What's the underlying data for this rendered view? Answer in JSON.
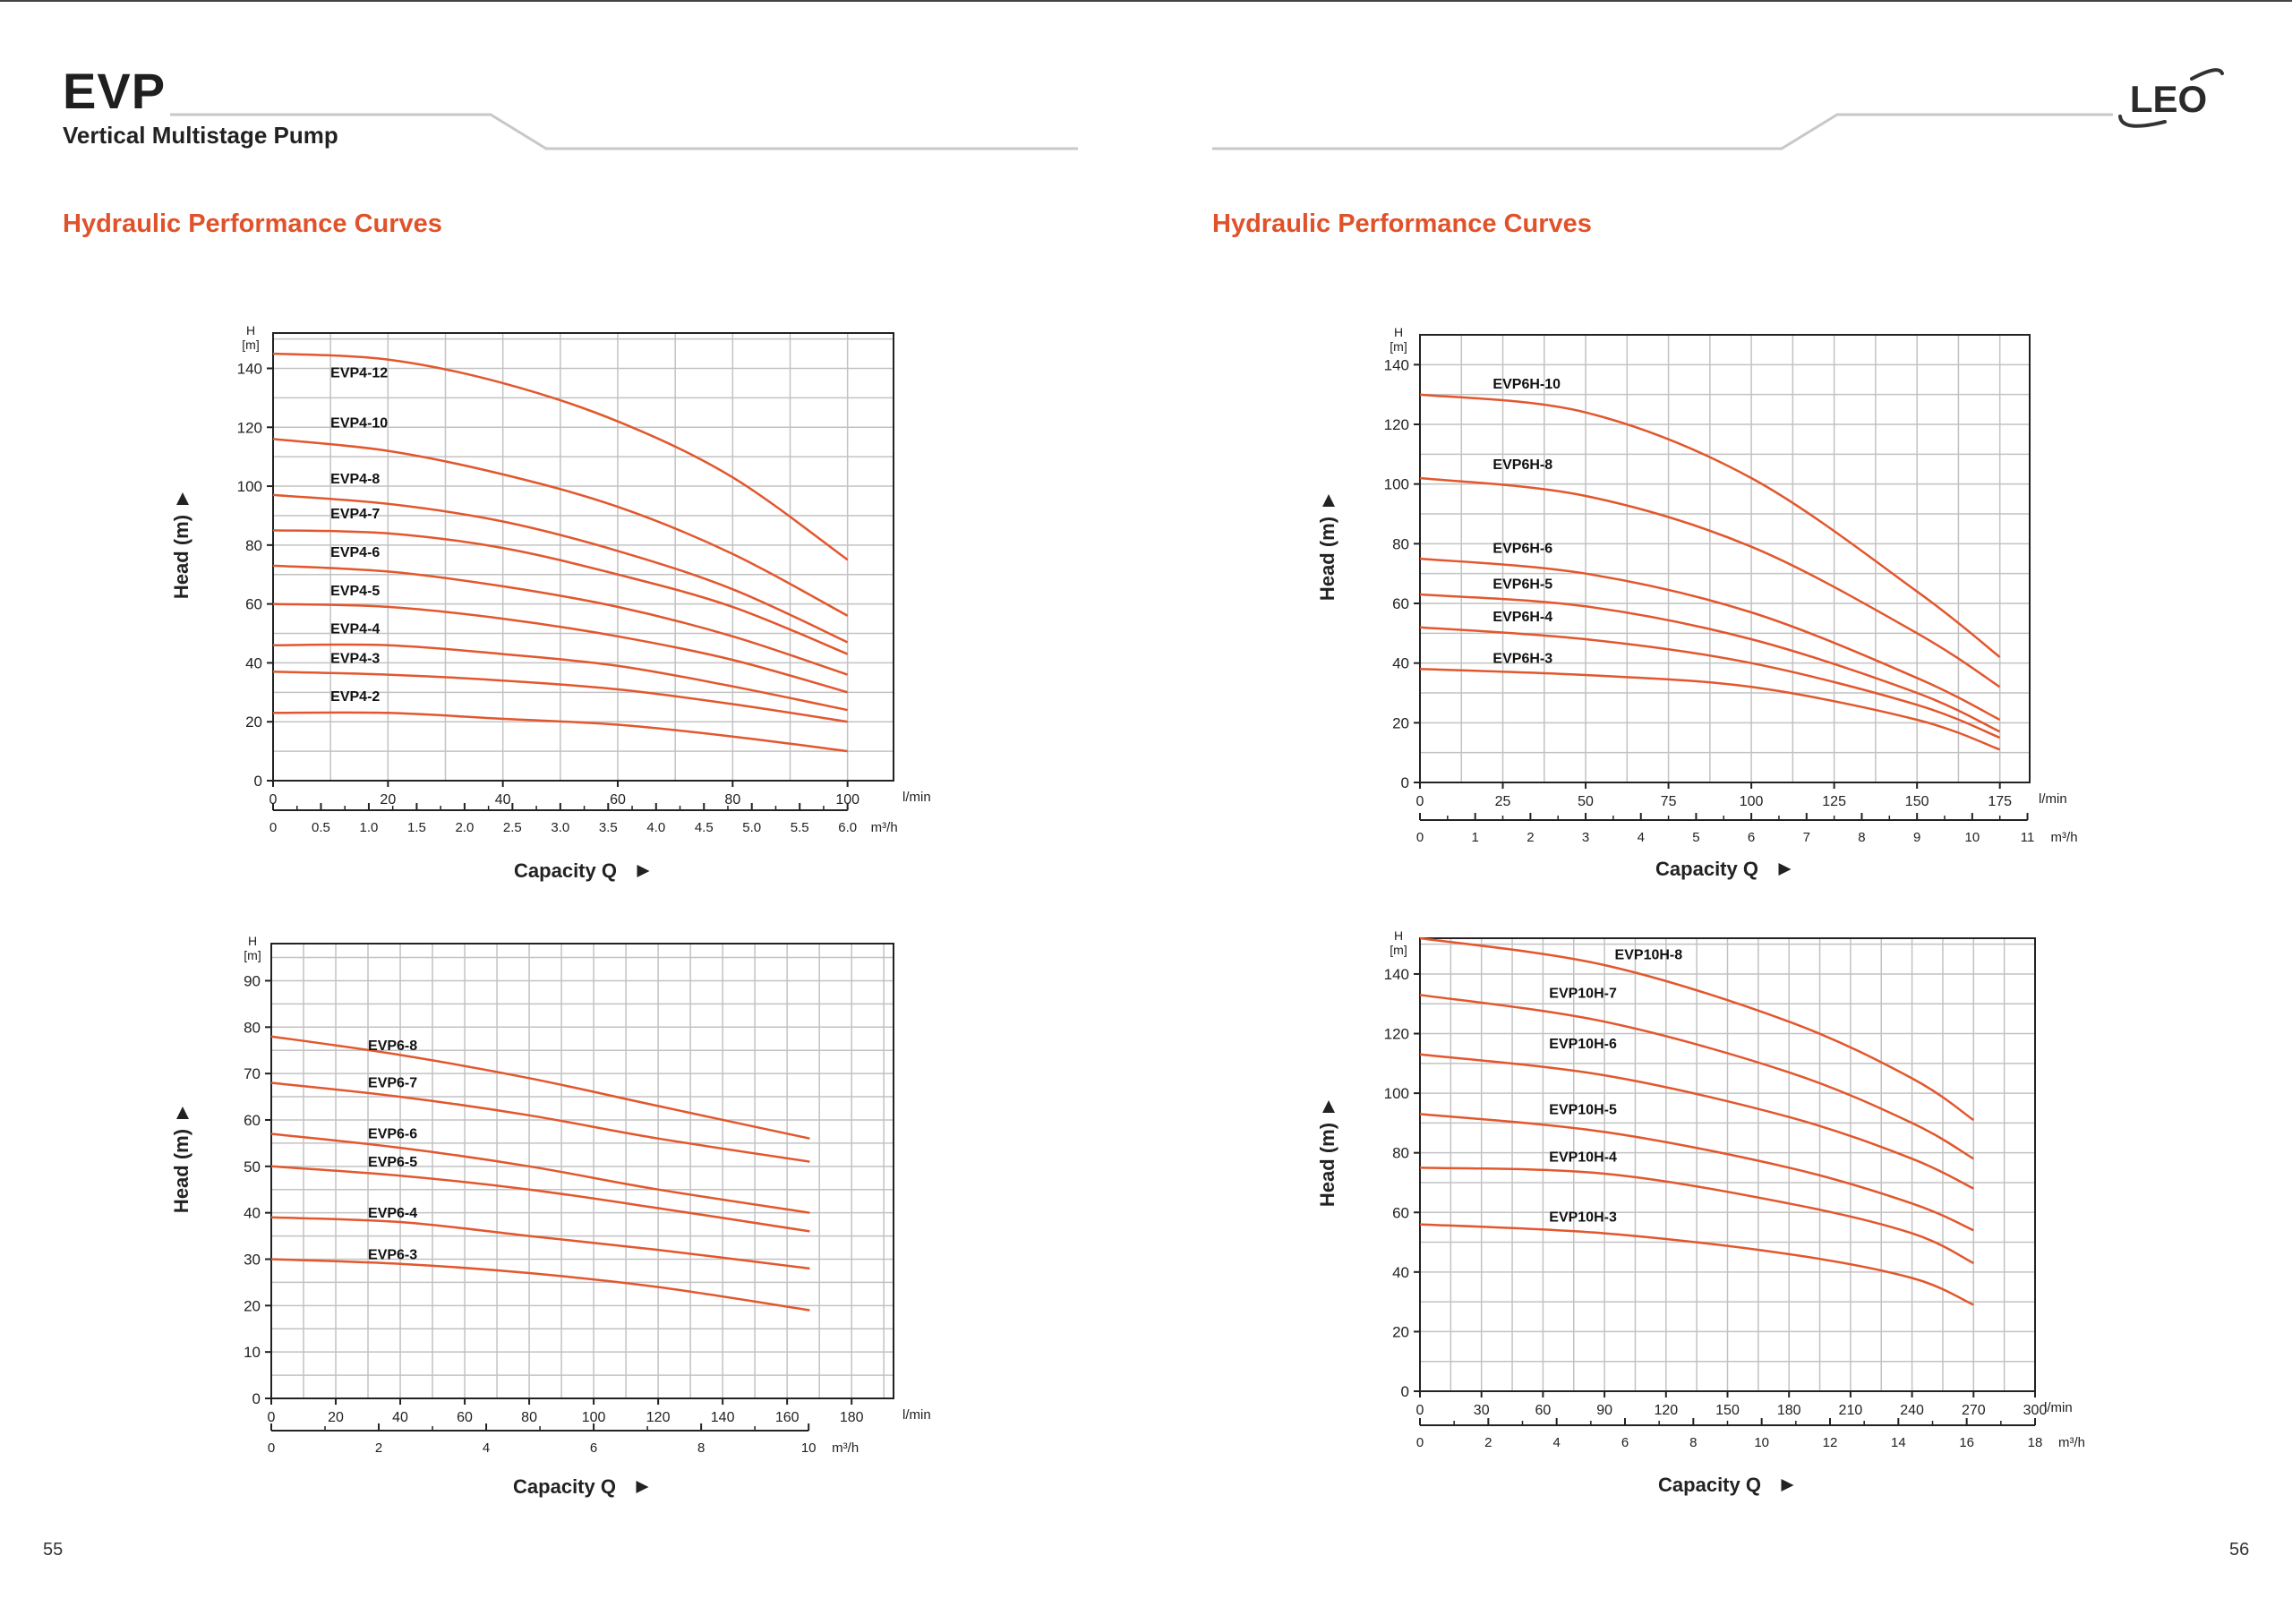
{
  "header": {
    "title": "EVP",
    "subtitle": "Vertical Multistage Pump",
    "logo_text": "LEO"
  },
  "left_page": {
    "section_title": "Hydraulic Performance Curves",
    "page_number": "55"
  },
  "right_page": {
    "section_title": "Hydraulic Performance Curves",
    "page_number": "56"
  },
  "colors": {
    "curve": "#e2572d",
    "accent": "#e0522a",
    "grid": "#c2c2c2",
    "frame": "#222222"
  },
  "chart_data": [
    {
      "id": "evp4",
      "type": "line",
      "title": "",
      "xlabel": "Capacity Q",
      "ylabel": "Head (m)",
      "y_unit_top": "H",
      "y_unit_bottom": "[m]",
      "x_unit": "l/min",
      "x2_unit": "m³/h",
      "xlim": [
        0,
        108
      ],
      "ylim": [
        0,
        152
      ],
      "xticks": [
        0,
        20,
        40,
        60,
        80,
        100
      ],
      "yticks": [
        0,
        20,
        40,
        60,
        80,
        100,
        120,
        140
      ],
      "x2ticks": [
        0,
        0.5,
        1.0,
        1.5,
        2.0,
        2.5,
        3.0,
        3.5,
        4.0,
        4.5,
        5.0,
        5.5,
        6.0
      ],
      "x2ticklabels": [
        "0",
        "0.5",
        "1.0",
        "1.5",
        "2.0",
        "2.5",
        "3.0",
        "3.5",
        "4.0",
        "4.5",
        "5.0",
        "5.5",
        "6.0"
      ],
      "x2_factor": 0.06,
      "series": [
        {
          "name": "EVP4-12",
          "label_at": [
            10,
            137
          ],
          "x": [
            0,
            20,
            40,
            60,
            80,
            100
          ],
          "values": [
            145,
            143,
            135,
            122,
            103,
            75
          ]
        },
        {
          "name": "EVP4-10",
          "label_at": [
            10,
            120
          ],
          "x": [
            0,
            20,
            40,
            60,
            80,
            100
          ],
          "values": [
            116,
            112,
            104,
            93,
            77,
            56
          ]
        },
        {
          "name": "EVP4-8",
          "label_at": [
            10,
            101
          ],
          "x": [
            0,
            20,
            40,
            60,
            80,
            100
          ],
          "values": [
            97,
            94,
            88,
            78,
            65,
            47
          ]
        },
        {
          "name": "EVP4-7",
          "label_at": [
            10,
            89
          ],
          "x": [
            0,
            20,
            40,
            60,
            80,
            100
          ],
          "values": [
            85,
            84,
            79,
            70,
            59,
            43
          ]
        },
        {
          "name": "EVP4-6",
          "label_at": [
            10,
            76
          ],
          "x": [
            0,
            20,
            40,
            60,
            80,
            100
          ],
          "values": [
            73,
            71,
            66,
            59,
            49,
            36
          ]
        },
        {
          "name": "EVP4-5",
          "label_at": [
            10,
            63
          ],
          "x": [
            0,
            20,
            40,
            60,
            80,
            100
          ],
          "values": [
            60,
            59,
            55,
            49,
            41,
            30
          ]
        },
        {
          "name": "EVP4-4",
          "label_at": [
            10,
            50
          ],
          "x": [
            0,
            20,
            40,
            60,
            80,
            100
          ],
          "values": [
            46,
            46,
            43,
            39,
            32,
            24
          ]
        },
        {
          "name": "EVP4-3",
          "label_at": [
            10,
            40
          ],
          "x": [
            0,
            20,
            40,
            60,
            80,
            100
          ],
          "values": [
            37,
            36,
            34,
            31,
            26,
            20
          ]
        },
        {
          "name": "EVP4-2",
          "label_at": [
            10,
            27
          ],
          "x": [
            0,
            20,
            40,
            60,
            80,
            100
          ],
          "values": [
            23,
            23,
            21,
            19,
            15,
            10
          ]
        }
      ]
    },
    {
      "id": "evp6",
      "type": "line",
      "title": "",
      "xlabel": "Capacity Q",
      "ylabel": "Head (m)",
      "y_unit_top": "H",
      "y_unit_bottom": "[m]",
      "x_unit": "l/min",
      "x2_unit": "m³/h",
      "xlim": [
        0,
        193
      ],
      "ylim": [
        0,
        98
      ],
      "xticks": [
        0,
        20,
        40,
        60,
        80,
        100,
        120,
        140,
        160,
        180
      ],
      "yticks": [
        0,
        10,
        20,
        30,
        40,
        50,
        60,
        70,
        80,
        90
      ],
      "x2ticks": [
        0,
        2,
        4,
        6,
        8,
        10
      ],
      "x2ticklabels": [
        "0",
        "2",
        "4",
        "6",
        "8",
        "10"
      ],
      "x2_factor": 0.06,
      "series": [
        {
          "name": "EVP6-8",
          "label_at": [
            30,
            75
          ],
          "x": [
            0,
            40,
            80,
            120,
            167
          ],
          "values": [
            78,
            74,
            69,
            63,
            56
          ]
        },
        {
          "name": "EVP6-7",
          "label_at": [
            30,
            67
          ],
          "x": [
            0,
            40,
            80,
            120,
            167
          ],
          "values": [
            68,
            65,
            61,
            56,
            51
          ]
        },
        {
          "name": "EVP6-6",
          "label_at": [
            30,
            56
          ],
          "x": [
            0,
            40,
            80,
            120,
            167
          ],
          "values": [
            57,
            54,
            50,
            45,
            40
          ]
        },
        {
          "name": "EVP6-5",
          "label_at": [
            30,
            50
          ],
          "x": [
            0,
            40,
            80,
            120,
            167
          ],
          "values": [
            50,
            48,
            45,
            41,
            36
          ]
        },
        {
          "name": "EVP6-4",
          "label_at": [
            30,
            39
          ],
          "x": [
            0,
            40,
            80,
            120,
            167
          ],
          "values": [
            39,
            38,
            35,
            32,
            28
          ]
        },
        {
          "name": "EVP6-3",
          "label_at": [
            30,
            30
          ],
          "x": [
            0,
            40,
            80,
            120,
            167
          ],
          "values": [
            30,
            29,
            27,
            24,
            19
          ]
        }
      ]
    },
    {
      "id": "evp6h",
      "type": "line",
      "title": "",
      "xlabel": "Capacity Q",
      "ylabel": "Head (m)",
      "y_unit_top": "H",
      "y_unit_bottom": "[m]",
      "x_unit": "l/min",
      "x2_unit": "m³/h",
      "xlim": [
        0,
        184
      ],
      "ylim": [
        0,
        150
      ],
      "xticks": [
        0,
        25,
        50,
        75,
        100,
        125,
        150,
        175
      ],
      "yticks": [
        0,
        20,
        40,
        60,
        80,
        100,
        120,
        140
      ],
      "x2ticks": [
        0,
        1,
        2,
        3,
        4,
        5,
        6,
        7,
        8,
        9,
        10,
        11
      ],
      "x2ticklabels": [
        "0",
        "1",
        "2",
        "3",
        "4",
        "5",
        "6",
        "7",
        "8",
        "9",
        "10",
        "11"
      ],
      "x2_factor": 0.06,
      "series": [
        {
          "name": "EVP6H-10",
          "label_at": [
            22,
            132
          ],
          "x": [
            0,
            50,
            100,
            150,
            175
          ],
          "values": [
            130,
            124,
            102,
            64,
            42
          ]
        },
        {
          "name": "EVP6H-8",
          "label_at": [
            22,
            105
          ],
          "x": [
            0,
            50,
            100,
            150,
            175
          ],
          "values": [
            102,
            96,
            79,
            50,
            32
          ]
        },
        {
          "name": "EVP6H-6",
          "label_at": [
            22,
            77
          ],
          "x": [
            0,
            50,
            100,
            150,
            175
          ],
          "values": [
            75,
            70,
            57,
            35,
            21
          ]
        },
        {
          "name": "EVP6H-5",
          "label_at": [
            22,
            65
          ],
          "x": [
            0,
            50,
            100,
            150,
            175
          ],
          "values": [
            63,
            59,
            48,
            30,
            17
          ]
        },
        {
          "name": "EVP6H-4",
          "label_at": [
            22,
            54
          ],
          "x": [
            0,
            50,
            100,
            150,
            175
          ],
          "values": [
            52,
            48,
            40,
            26,
            15
          ]
        },
        {
          "name": "EVP6H-3",
          "label_at": [
            22,
            40
          ],
          "x": [
            0,
            50,
            100,
            150,
            175
          ],
          "values": [
            38,
            36,
            32,
            21,
            11
          ]
        }
      ]
    },
    {
      "id": "evp10h",
      "type": "line",
      "title": "",
      "xlabel": "Capacity Q",
      "ylabel": "Head (m)",
      "y_unit_top": "H",
      "y_unit_bottom": "[m]",
      "x_unit": "l/min",
      "x2_unit": "m³/h",
      "xlim": [
        0,
        300
      ],
      "ylim": [
        0,
        152
      ],
      "xticks": [
        0,
        30,
        60,
        90,
        120,
        150,
        180,
        210,
        240,
        270,
        300
      ],
      "yticks": [
        0,
        20,
        40,
        60,
        80,
        100,
        120,
        140
      ],
      "x2ticks": [
        0,
        2,
        4,
        6,
        8,
        10,
        12,
        14,
        16,
        18
      ],
      "x2ticklabels": [
        "0",
        "2",
        "4",
        "6",
        "8",
        "10",
        "12",
        "14",
        "16",
        "18"
      ],
      "x2_factor": 0.06,
      "series": [
        {
          "name": "EVP10H-8",
          "label_at": [
            95,
            145
          ],
          "x": [
            0,
            90,
            180,
            240,
            270
          ],
          "values": [
            152,
            143,
            124,
            105,
            91
          ]
        },
        {
          "name": "EVP10H-7",
          "label_at": [
            63,
            132
          ],
          "x": [
            0,
            90,
            180,
            240,
            270
          ],
          "values": [
            133,
            124,
            107,
            90,
            78
          ]
        },
        {
          "name": "EVP10H-6",
          "label_at": [
            63,
            115
          ],
          "x": [
            0,
            90,
            180,
            240,
            270
          ],
          "values": [
            113,
            106,
            92,
            78,
            68
          ]
        },
        {
          "name": "EVP10H-5",
          "label_at": [
            63,
            93
          ],
          "x": [
            0,
            90,
            180,
            240,
            270
          ],
          "values": [
            93,
            87,
            75,
            63,
            54
          ]
        },
        {
          "name": "EVP10H-4",
          "label_at": [
            63,
            77
          ],
          "x": [
            0,
            90,
            180,
            240,
            270
          ],
          "values": [
            75,
            73,
            63,
            53,
            43
          ]
        },
        {
          "name": "EVP10H-3",
          "label_at": [
            63,
            57
          ],
          "x": [
            0,
            90,
            180,
            240,
            270
          ],
          "values": [
            56,
            53,
            46,
            38,
            29
          ]
        }
      ]
    }
  ]
}
